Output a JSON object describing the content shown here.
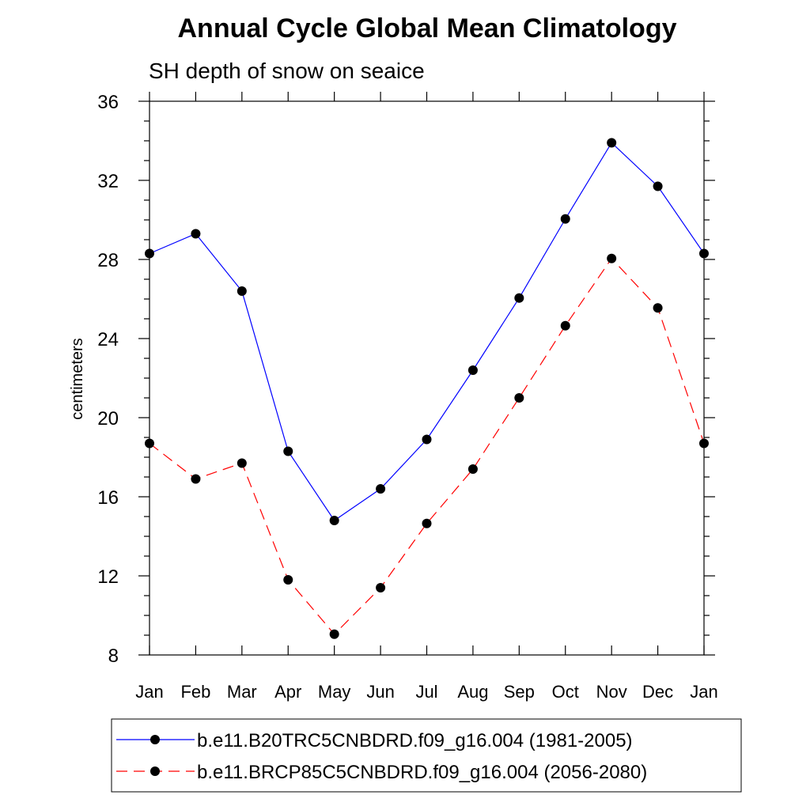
{
  "chart_data": {
    "type": "line",
    "title": "Annual Cycle Global Mean Climatology",
    "subtitle": "SH depth of snow on seaice",
    "xlabel": "",
    "ylabel": "centimeters",
    "categories": [
      "Jan",
      "Feb",
      "Mar",
      "Apr",
      "May",
      "Jun",
      "Jul",
      "Aug",
      "Sep",
      "Oct",
      "Nov",
      "Dec",
      "Jan"
    ],
    "ylim": [
      8,
      36
    ],
    "yticks": [
      "8",
      "12",
      "16",
      "20",
      "24",
      "28",
      "32",
      "36"
    ],
    "series": [
      {
        "name": "b.e11.B20TRC5CNBDRD.f09_g16.004 (1981-2005)",
        "color": "#0000ff",
        "dash": "solid",
        "values": [
          28.3,
          29.3,
          26.4,
          18.3,
          14.8,
          16.4,
          18.9,
          22.4,
          26.05,
          30.05,
          33.9,
          31.7,
          28.3
        ]
      },
      {
        "name": "b.e11.BRCP85C5CNBDRD.f09_g16.004 (2056-2080)",
        "color": "#ff0000",
        "dash": "dashed",
        "values": [
          18.7,
          16.9,
          17.7,
          11.8,
          9.05,
          11.4,
          14.65,
          17.4,
          21.0,
          24.65,
          28.05,
          25.55,
          18.7
        ]
      }
    ],
    "legend_position": "bottom"
  }
}
